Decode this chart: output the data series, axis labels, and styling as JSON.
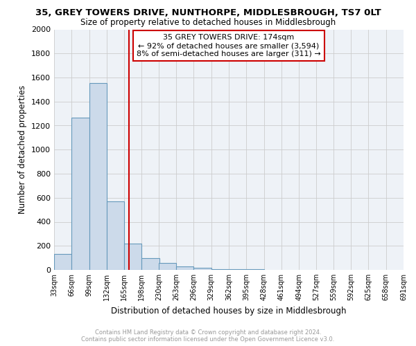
{
  "title": "35, GREY TOWERS DRIVE, NUNTHORPE, MIDDLESBROUGH, TS7 0LT",
  "subtitle": "Size of property relative to detached houses in Middlesbrough",
  "xlabel": "Distribution of detached houses by size in Middlesbrough",
  "ylabel": "Number of detached properties",
  "bar_color": "#ccdaea",
  "bar_edge_color": "#6699bb",
  "bin_edges": [
    33,
    66,
    99,
    132,
    165,
    198,
    230,
    263,
    296,
    329,
    362,
    395,
    428,
    461,
    494,
    527,
    559,
    592,
    625,
    658,
    691
  ],
  "bar_heights": [
    130,
    1265,
    1555,
    570,
    220,
    100,
    55,
    30,
    20,
    5,
    5,
    5,
    0,
    0,
    0,
    0,
    0,
    0,
    0,
    0
  ],
  "property_size": 174,
  "red_line_color": "#cc0000",
  "annotation_line1": "35 GREY TOWERS DRIVE: 174sqm",
  "annotation_line2": "← 92% of detached houses are smaller (3,594)",
  "annotation_line3": "8% of semi-detached houses are larger (311) →",
  "annotation_box_color": "#cc0000",
  "ylim": [
    0,
    2000
  ],
  "yticks": [
    0,
    200,
    400,
    600,
    800,
    1000,
    1200,
    1400,
    1600,
    1800,
    2000
  ],
  "grid_color": "#cccccc",
  "bg_color": "#eef2f7",
  "footer_line1": "Contains HM Land Registry data © Crown copyright and database right 2024.",
  "footer_line2": "Contains public sector information licensed under the Open Government Licence v3.0.",
  "footer_color": "#999999"
}
